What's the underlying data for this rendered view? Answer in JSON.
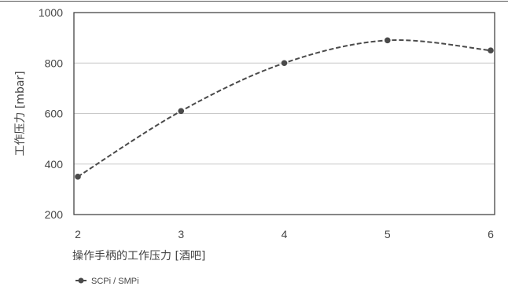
{
  "chart_data": {
    "type": "line",
    "x": [
      2,
      3,
      4,
      5,
      6
    ],
    "series": [
      {
        "name": "SCPi / SMPi",
        "values": [
          350,
          610,
          800,
          890,
          850
        ]
      }
    ],
    "xlabel": "操作手柄的工作压力 [酒吧]",
    "ylabel": "工作压力 [mbar]",
    "xlim": [
      2,
      6
    ],
    "ylim": [
      200,
      1000
    ],
    "xticks": [
      "2",
      "3",
      "4",
      "5",
      "6"
    ],
    "yticks": [
      "200",
      "400",
      "600",
      "800",
      "1000"
    ],
    "grid": "horizontal",
    "legend": "bottom-left",
    "colors": {
      "line": "#4a4a4a",
      "grid": "#c8c8c8",
      "frame": "#444444"
    }
  }
}
